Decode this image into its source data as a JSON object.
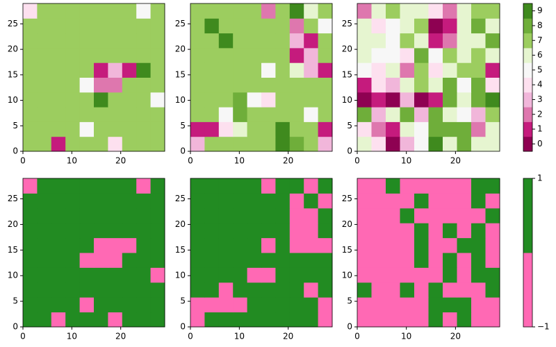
{
  "chart_data": [
    {
      "type": "heatmap",
      "xlim": [
        0,
        29
      ],
      "ylim": [
        0,
        29
      ],
      "xticks": [
        0,
        10,
        20
      ],
      "yticks": [
        0,
        5,
        10,
        15,
        20,
        25
      ],
      "levels": [
        0,
        1,
        2,
        3,
        4,
        5,
        6,
        7,
        8,
        9
      ],
      "colors": [
        "#8e0152",
        "#c51b7d",
        "#de77ae",
        "#f1b6da",
        "#fde0ef",
        "#f7f7f7",
        "#e6f5d0",
        "#9ccd5f",
        "#6fae3a",
        "#3f8a1e"
      ],
      "z": [
        [
          7,
          7,
          1,
          7,
          7,
          7,
          4,
          7,
          7,
          7
        ],
        [
          7,
          7,
          7,
          7,
          5,
          7,
          7,
          7,
          7,
          7
        ],
        [
          7,
          7,
          7,
          7,
          7,
          7,
          7,
          7,
          7,
          7
        ],
        [
          7,
          7,
          7,
          7,
          7,
          9,
          7,
          7,
          7,
          5
        ],
        [
          7,
          7,
          7,
          7,
          5,
          2,
          2,
          7,
          7,
          7
        ],
        [
          7,
          7,
          7,
          7,
          7,
          1,
          3,
          1,
          9,
          7
        ],
        [
          7,
          7,
          7,
          7,
          7,
          7,
          7,
          7,
          7,
          7
        ],
        [
          7,
          7,
          7,
          7,
          7,
          7,
          7,
          7,
          7,
          7
        ],
        [
          7,
          7,
          7,
          7,
          7,
          7,
          7,
          7,
          7,
          7
        ],
        [
          4,
          7,
          7,
          7,
          7,
          7,
          7,
          7,
          5,
          7
        ]
      ]
    },
    {
      "type": "heatmap",
      "xlim": [
        0,
        29
      ],
      "ylim": [
        0,
        29
      ],
      "xticks": [
        0,
        10,
        20
      ],
      "yticks": [
        0,
        5,
        10,
        15,
        20,
        25
      ],
      "levels": [
        0,
        1,
        2,
        3,
        4,
        5,
        6,
        7,
        8,
        9
      ],
      "colors": [
        "#8e0152",
        "#c51b7d",
        "#de77ae",
        "#f1b6da",
        "#fde0ef",
        "#f7f7f7",
        "#e6f5d0",
        "#9ccd5f",
        "#6fae3a",
        "#3f8a1e"
      ],
      "z": [
        [
          3,
          7,
          7,
          7,
          7,
          7,
          9,
          8,
          7,
          3
        ],
        [
          1,
          1,
          4,
          6,
          7,
          7,
          9,
          7,
          7,
          1
        ],
        [
          7,
          7,
          5,
          8,
          7,
          7,
          7,
          7,
          5,
          7
        ],
        [
          7,
          7,
          7,
          8,
          5,
          4,
          7,
          7,
          7,
          7
        ],
        [
          7,
          7,
          7,
          7,
          7,
          7,
          7,
          7,
          7,
          7
        ],
        [
          7,
          7,
          7,
          7,
          7,
          5,
          7,
          6,
          3,
          1
        ],
        [
          7,
          7,
          7,
          7,
          7,
          7,
          7,
          1,
          3,
          7
        ],
        [
          7,
          7,
          9,
          7,
          7,
          7,
          7,
          3,
          1,
          7
        ],
        [
          7,
          9,
          7,
          7,
          7,
          7,
          7,
          2,
          7,
          5
        ],
        [
          7,
          7,
          7,
          7,
          7,
          2,
          7,
          9,
          6,
          7
        ]
      ]
    },
    {
      "type": "heatmap",
      "xlim": [
        0,
        29
      ],
      "ylim": [
        0,
        29
      ],
      "xticks": [
        0,
        10,
        20
      ],
      "yticks": [
        0,
        5,
        10,
        15,
        20,
        25
      ],
      "levels": [
        0,
        1,
        2,
        3,
        4,
        5,
        6,
        7,
        8,
        9
      ],
      "colors": [
        "#8e0152",
        "#c51b7d",
        "#de77ae",
        "#f1b6da",
        "#fde0ef",
        "#f7f7f7",
        "#e6f5d0",
        "#9ccd5f",
        "#6fae3a",
        "#3f8a1e"
      ],
      "z": [
        [
          6,
          4,
          0,
          3,
          5,
          9,
          6,
          8,
          6,
          6
        ],
        [
          4,
          2,
          1,
          6,
          5,
          8,
          8,
          8,
          2,
          6
        ],
        [
          8,
          3,
          6,
          8,
          3,
          8,
          6,
          5,
          3,
          7
        ],
        [
          0,
          1,
          0,
          3,
          0,
          1,
          8,
          6,
          8,
          9
        ],
        [
          1,
          4,
          3,
          6,
          7,
          6,
          8,
          5,
          8,
          4
        ],
        [
          5,
          4,
          6,
          2,
          7,
          4,
          6,
          7,
          7,
          1
        ],
        [
          6,
          5,
          5,
          4,
          8,
          5,
          7,
          6,
          7,
          6
        ],
        [
          6,
          6,
          5,
          7,
          6,
          1,
          2,
          6,
          6,
          8
        ],
        [
          6,
          4,
          5,
          6,
          7,
          0,
          1,
          6,
          8,
          6
        ],
        [
          2,
          6,
          7,
          6,
          6,
          4,
          2,
          6,
          7,
          7
        ]
      ],
      "colorbar": {
        "lim": [
          -0.5,
          9.5
        ],
        "ticks": [
          0,
          1,
          2,
          3,
          4,
          5,
          6,
          7,
          8,
          9
        ]
      }
    },
    {
      "type": "heatmap",
      "xlim": [
        0,
        29
      ],
      "ylim": [
        0,
        29
      ],
      "xticks": [
        0,
        10,
        20
      ],
      "yticks": [
        0,
        5,
        10,
        15,
        20,
        25
      ],
      "levels": [
        -1,
        1
      ],
      "colors": [
        "#ff69b4",
        "#228b22"
      ],
      "z": [
        [
          1,
          1,
          -1,
          1,
          1,
          1,
          -1,
          1,
          1,
          1
        ],
        [
          1,
          1,
          1,
          1,
          -1,
          1,
          1,
          1,
          1,
          1
        ],
        [
          1,
          1,
          1,
          1,
          1,
          1,
          1,
          1,
          1,
          1
        ],
        [
          1,
          1,
          1,
          1,
          1,
          1,
          1,
          1,
          1,
          -1
        ],
        [
          1,
          1,
          1,
          1,
          -1,
          -1,
          -1,
          1,
          1,
          1
        ],
        [
          1,
          1,
          1,
          1,
          1,
          -1,
          -1,
          -1,
          1,
          1
        ],
        [
          1,
          1,
          1,
          1,
          1,
          1,
          1,
          1,
          1,
          1
        ],
        [
          1,
          1,
          1,
          1,
          1,
          1,
          1,
          1,
          1,
          1
        ],
        [
          1,
          1,
          1,
          1,
          1,
          1,
          1,
          1,
          1,
          1
        ],
        [
          -1,
          1,
          1,
          1,
          1,
          1,
          1,
          1,
          -1,
          1
        ]
      ]
    },
    {
      "type": "heatmap",
      "xlim": [
        0,
        29
      ],
      "ylim": [
        0,
        29
      ],
      "xticks": [
        0,
        10,
        20
      ],
      "yticks": [
        0,
        5,
        10,
        15,
        20,
        25
      ],
      "levels": [
        -1,
        1
      ],
      "colors": [
        "#ff69b4",
        "#228b22"
      ],
      "z": [
        [
          -1,
          1,
          1,
          1,
          1,
          1,
          1,
          1,
          1,
          -1
        ],
        [
          -1,
          -1,
          -1,
          -1,
          1,
          1,
          1,
          1,
          1,
          -1
        ],
        [
          1,
          1,
          -1,
          1,
          1,
          1,
          1,
          1,
          -1,
          1
        ],
        [
          1,
          1,
          1,
          1,
          -1,
          -1,
          1,
          1,
          1,
          1
        ],
        [
          1,
          1,
          1,
          1,
          1,
          1,
          1,
          1,
          1,
          1
        ],
        [
          1,
          1,
          1,
          1,
          1,
          -1,
          1,
          -1,
          -1,
          -1
        ],
        [
          1,
          1,
          1,
          1,
          1,
          1,
          1,
          -1,
          -1,
          1
        ],
        [
          1,
          1,
          1,
          1,
          1,
          1,
          1,
          -1,
          -1,
          1
        ],
        [
          1,
          1,
          1,
          1,
          1,
          1,
          1,
          -1,
          1,
          -1
        ],
        [
          1,
          1,
          1,
          1,
          1,
          -1,
          1,
          1,
          -1,
          1
        ]
      ]
    },
    {
      "type": "heatmap",
      "xlim": [
        0,
        29
      ],
      "ylim": [
        0,
        29
      ],
      "xticks": [
        0,
        10,
        20
      ],
      "yticks": [
        0,
        5,
        10,
        15,
        20,
        25
      ],
      "levels": [
        -1,
        1
      ],
      "colors": [
        "#ff69b4",
        "#228b22"
      ],
      "z": [
        [
          -1,
          -1,
          -1,
          -1,
          -1,
          1,
          -1,
          1,
          -1,
          -1
        ],
        [
          -1,
          -1,
          -1,
          -1,
          -1,
          1,
          1,
          1,
          -1,
          -1
        ],
        [
          1,
          -1,
          -1,
          1,
          -1,
          1,
          -1,
          -1,
          -1,
          1
        ],
        [
          -1,
          -1,
          -1,
          -1,
          -1,
          -1,
          1,
          -1,
          1,
          1
        ],
        [
          -1,
          -1,
          -1,
          -1,
          1,
          -1,
          1,
          -1,
          1,
          -1
        ],
        [
          -1,
          -1,
          -1,
          -1,
          1,
          -1,
          -1,
          1,
          1,
          -1
        ],
        [
          -1,
          -1,
          -1,
          -1,
          1,
          -1,
          1,
          -1,
          1,
          -1
        ],
        [
          -1,
          -1,
          -1,
          1,
          -1,
          -1,
          -1,
          -1,
          -1,
          1
        ],
        [
          -1,
          -1,
          -1,
          -1,
          1,
          -1,
          -1,
          -1,
          1,
          -1
        ],
        [
          -1,
          -1,
          1,
          -1,
          -1,
          -1,
          -1,
          -1,
          1,
          1
        ]
      ],
      "colorbar": {
        "lim": [
          -1,
          1
        ],
        "ticks": [
          {
            "value": -1,
            "label": "−1"
          },
          1
        ]
      }
    }
  ]
}
